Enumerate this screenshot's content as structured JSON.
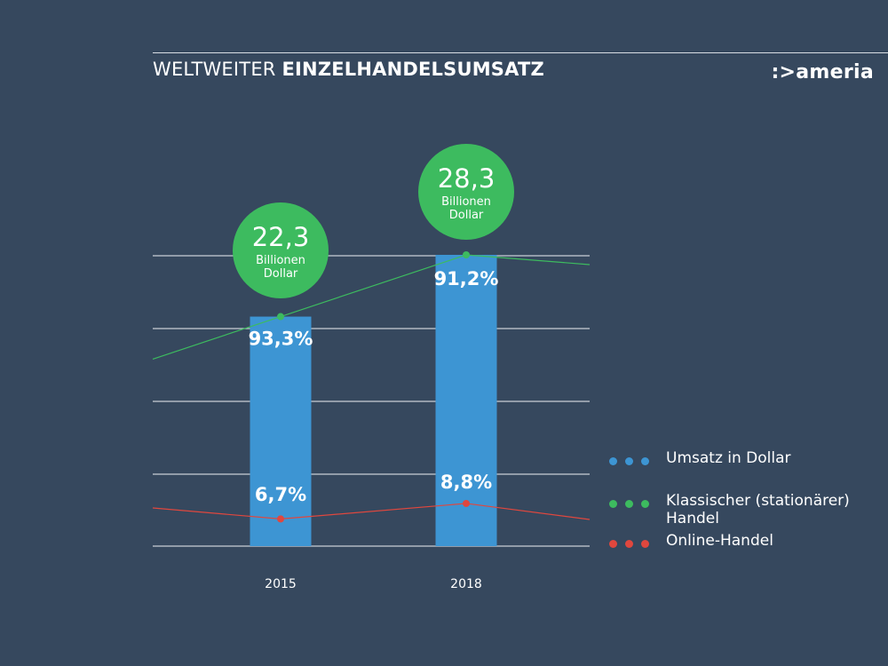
{
  "header": {
    "title_light": "WELTWEITER",
    "title_bold": "EINZELHANDELSUMSATZ",
    "logo": ":>ameria"
  },
  "colors": {
    "background": "#36485e",
    "bar": "#3d95d3",
    "classic": "#3dbb5f",
    "online": "#e0473e",
    "grid": "#c9ced6"
  },
  "chart_data": {
    "type": "bar",
    "categories": [
      "2015",
      "2018"
    ],
    "series": [
      {
        "name": "Umsatz in Dollar",
        "values": [
          22.3,
          28.3
        ],
        "value_labels": [
          "22,3",
          "28,3"
        ],
        "unit_label": [
          "Billionen",
          "Dollar"
        ]
      },
      {
        "name": "Klassischer (stationärer) Handel",
        "type": "line",
        "values": [
          93.3,
          91.2
        ],
        "value_labels": [
          "93,3%",
          "91,2%"
        ]
      },
      {
        "name": "Online-Handel",
        "type": "line",
        "values": [
          6.7,
          8.8
        ],
        "value_labels": [
          "6,7%",
          "8,8%"
        ]
      }
    ],
    "legend": {
      "position": "right",
      "entries": [
        "Umsatz in Dollar",
        "Klassischer (stationärer)\nHandel",
        "Online-Handel"
      ]
    },
    "grid": true
  }
}
